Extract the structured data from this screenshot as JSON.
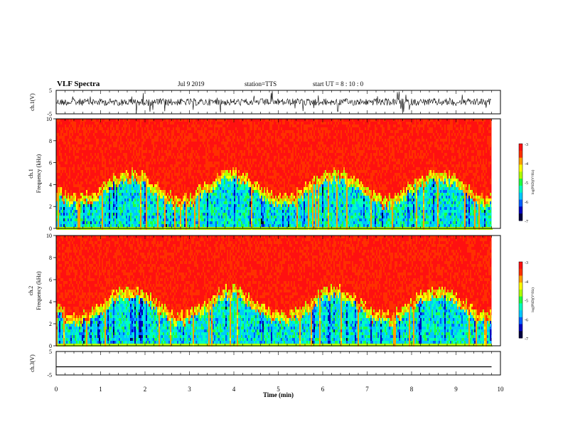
{
  "header": {
    "title": "VLF Spectra",
    "date": "Jul  9   2019",
    "station": "station=TTS",
    "start": "start  UT  =   8 : 10 : 0"
  },
  "chart_data": [
    {
      "type": "line",
      "panel": "ch1-waveform",
      "ylabel": "ch.1(V)",
      "ylim": [
        -5,
        5
      ],
      "yticks": [
        "5",
        "-5"
      ],
      "xlim": [
        0,
        10
      ]
    },
    {
      "type": "heatmap",
      "panel": "ch1-spectrogram",
      "ylabel_lines": [
        "ch.1",
        "Frequency  (kHz)"
      ],
      "ylim": [
        0,
        10
      ],
      "yticks": [
        "0",
        "2",
        "4",
        "6",
        "8",
        "10"
      ],
      "xlim": [
        0,
        10
      ],
      "colorbar": {
        "label": "log(PSD)(V²/Hz)",
        "ticks": [
          "-3",
          "-4",
          "-5",
          "-6",
          "-7"
        ]
      }
    },
    {
      "type": "heatmap",
      "panel": "ch2-spectrogram",
      "ylabel_lines": [
        "ch.2",
        "Frequency  (kHz)"
      ],
      "ylim": [
        0,
        10
      ],
      "yticks": [
        "0",
        "2",
        "4",
        "6",
        "8",
        "10"
      ],
      "xlim": [
        0,
        10
      ],
      "colorbar": {
        "label": "log(PSD)(V²/Hz)",
        "ticks": [
          "-3",
          "-4",
          "-5",
          "-6",
          "-7"
        ]
      }
    },
    {
      "type": "line",
      "panel": "ch3-waveform",
      "ylabel": "ch.3(V)",
      "ylim": [
        -5,
        5
      ],
      "yticks": [
        "5",
        "-5"
      ],
      "xlim": [
        0,
        10
      ],
      "xticks": [
        "0",
        "1",
        "2",
        "3",
        "4",
        "5",
        "6",
        "7",
        "8",
        "9",
        "10"
      ],
      "xlabel": "Time  (min)",
      "data_end_min": 9.8
    }
  ],
  "colormap": [
    "#000040",
    "#0000c0",
    "#0060ff",
    "#00c8ff",
    "#00ffc0",
    "#20ff40",
    "#b0ff00",
    "#ffff00",
    "#ffa000",
    "#ff3000",
    "#ff1010"
  ]
}
